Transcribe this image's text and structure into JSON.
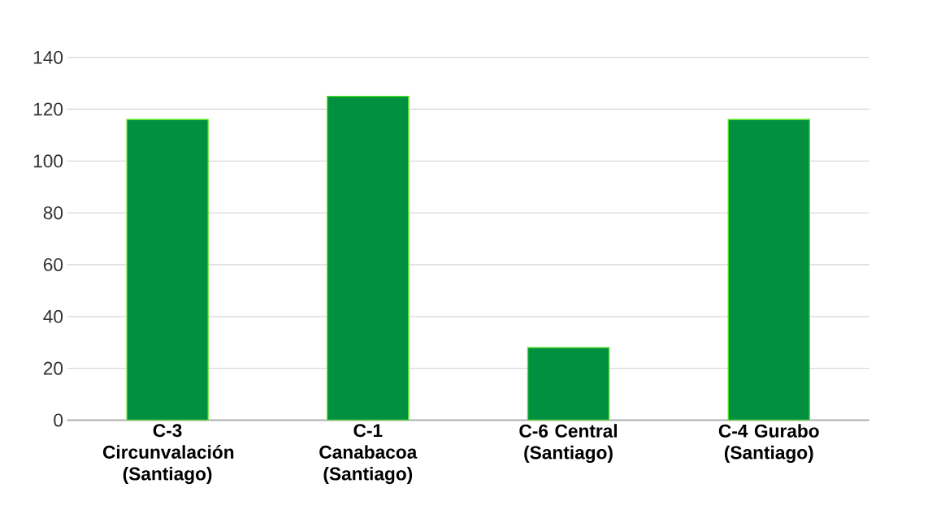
{
  "chart_data": {
    "type": "bar",
    "categories": [
      "C-3 Circunvalación (Santiago)",
      "C-1 Canabacoa (Santiago)",
      "C-6 Central (Santiago)",
      "C-4 Gurabo (Santiago)"
    ],
    "values": [
      116,
      125,
      28,
      116
    ],
    "color": "#009040",
    "ylim": [
      0,
      140
    ],
    "yticks": [
      0,
      20,
      40,
      60,
      80,
      100,
      120,
      140
    ],
    "grid": "y"
  }
}
